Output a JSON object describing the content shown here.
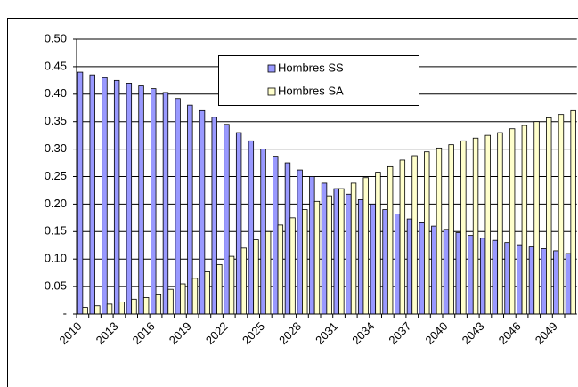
{
  "chart_data": {
    "type": "bar",
    "categories": [
      "2010",
      null,
      null,
      "2013",
      null,
      null,
      "2016",
      null,
      null,
      "2019",
      null,
      null,
      "2022",
      null,
      null,
      "2025",
      null,
      null,
      "2028",
      null,
      null,
      "2031",
      null,
      null,
      "2034",
      null,
      null,
      "2037",
      null,
      null,
      "2040",
      null,
      null,
      "2043",
      null,
      null,
      "2046",
      null,
      null,
      "2049",
      null
    ],
    "series": [
      {
        "name": "Hombres SS",
        "color": "#9999ff",
        "values": [
          0.44,
          0.435,
          0.43,
          0.425,
          0.42,
          0.415,
          0.41,
          0.403,
          0.392,
          0.38,
          0.37,
          0.358,
          0.345,
          0.33,
          0.315,
          0.3,
          0.287,
          0.275,
          0.262,
          0.25,
          0.238,
          0.228,
          0.218,
          0.208,
          0.2,
          0.19,
          0.182,
          0.173,
          0.166,
          0.16,
          0.154,
          0.148,
          0.143,
          0.138,
          0.134,
          0.13,
          0.126,
          0.122,
          0.119,
          0.115,
          0.11
        ]
      },
      {
        "name": "Hombres SA",
        "color": "#ffffcc",
        "values": [
          0.012,
          0.015,
          0.018,
          0.022,
          0.027,
          0.03,
          0.035,
          0.045,
          0.055,
          0.065,
          0.077,
          0.09,
          0.105,
          0.12,
          0.135,
          0.15,
          0.162,
          0.175,
          0.19,
          0.205,
          0.215,
          0.228,
          0.238,
          0.248,
          0.258,
          0.268,
          0.28,
          0.288,
          0.295,
          0.302,
          0.308,
          0.315,
          0.32,
          0.325,
          0.33,
          0.337,
          0.343,
          0.35,
          0.357,
          0.363,
          0.37
        ]
      }
    ],
    "ylim": [
      0,
      0.5
    ],
    "yticks": [
      {
        "value": 0,
        "label": "-"
      },
      {
        "value": 0.05,
        "label": "0.05"
      },
      {
        "value": 0.1,
        "label": "0.10"
      },
      {
        "value": 0.15,
        "label": "0.15"
      },
      {
        "value": 0.2,
        "label": "0.20"
      },
      {
        "value": 0.25,
        "label": "0.25"
      },
      {
        "value": 0.3,
        "label": "0.30"
      },
      {
        "value": 0.35,
        "label": "0.35"
      },
      {
        "value": 0.4,
        "label": "0.40"
      },
      {
        "value": 0.45,
        "label": "0.45"
      },
      {
        "value": 0.5,
        "label": "0.50"
      }
    ],
    "grid": true
  }
}
